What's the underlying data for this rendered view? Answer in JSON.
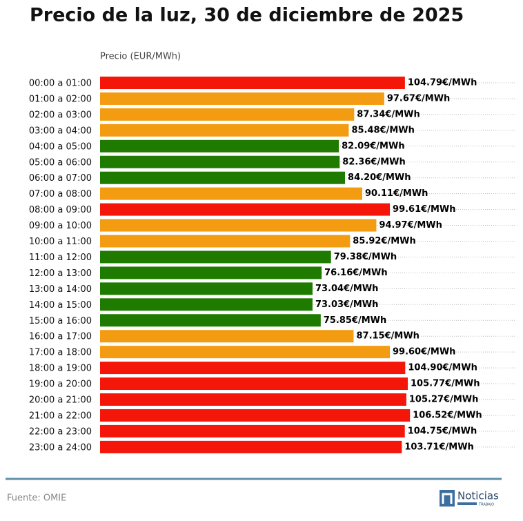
{
  "chart_data": {
    "type": "hbar",
    "title": "Precio de la luz, 30 de diciembre de 2025",
    "x_label": "Precio (EUR/MWh)",
    "categories": [
      "00:00 a 01:00",
      "01:00 a 02:00",
      "02:00 a 03:00",
      "03:00 a 04:00",
      "04:00 a 05:00",
      "05:00 a 06:00",
      "06:00 a 07:00",
      "07:00 a 08:00",
      "08:00 a 09:00",
      "09:00 a 10:00",
      "10:00 a 11:00",
      "11:00 a 12:00",
      "12:00 a 13:00",
      "13:00 a 14:00",
      "14:00 a 15:00",
      "15:00 a 16:00",
      "16:00 a 17:00",
      "17:00 a 18:00",
      "18:00 a 19:00",
      "19:00 a 20:00",
      "20:00 a 21:00",
      "21:00 a 22:00",
      "22:00 a 23:00",
      "23:00 a 24:00"
    ],
    "values": [
      104.79,
      97.67,
      87.34,
      85.48,
      82.09,
      82.36,
      84.2,
      90.11,
      99.61,
      94.97,
      85.92,
      79.38,
      76.16,
      73.04,
      73.03,
      75.85,
      87.15,
      99.6,
      104.9,
      105.77,
      105.27,
      106.52,
      104.75,
      103.71
    ],
    "value_labels": [
      "104.79€/MWh",
      "97.67€/MWh",
      "87.34€/MWh",
      "85.48€/MWh",
      "82.09€/MWh",
      "82.36€/MWh",
      "84.20€/MWh",
      "90.11€/MWh",
      "99.61€/MWh",
      "94.97€/MWh",
      "85.92€/MWh",
      "79.38€/MWh",
      "76.16€/MWh",
      "73.04€/MWh",
      "73.03€/MWh",
      "75.85€/MWh",
      "87.15€/MWh",
      "99.60€/MWh",
      "104.90€/MWh",
      "105.77€/MWh",
      "105.27€/MWh",
      "106.52€/MWh",
      "104.75€/MWh",
      "103.71€/MWh"
    ],
    "colors": [
      "#f5160a",
      "#f39c12",
      "#f39c12",
      "#f39c12",
      "#1e7b00",
      "#1e7b00",
      "#1e7b00",
      "#f39c12",
      "#f5160a",
      "#f39c12",
      "#f39c12",
      "#1e7b00",
      "#1e7b00",
      "#1e7b00",
      "#1e7b00",
      "#1e7b00",
      "#f39c12",
      "#f39c12",
      "#f5160a",
      "#f5160a",
      "#f5160a",
      "#f5160a",
      "#f5160a",
      "#f5160a"
    ],
    "xlim": [
      0,
      143
    ],
    "source": "Fuente: OMIE"
  },
  "logo": {
    "name": "Noticias",
    "sub": "TRABAJO"
  }
}
